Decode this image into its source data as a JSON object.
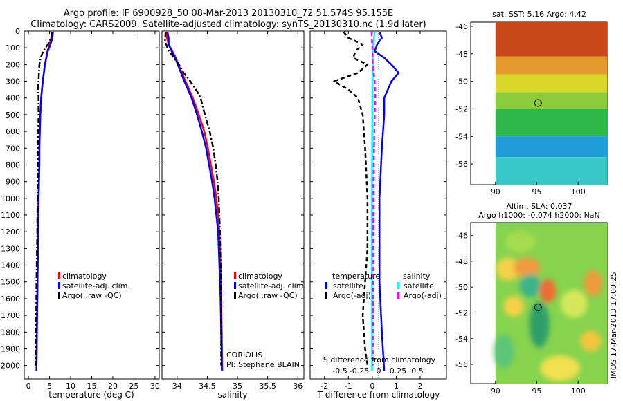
{
  "header": {
    "title_line1": "Argo profile: IF 6900928_50 08-Mar-2013 20130310_72 51.574S 95.155E",
    "title_line2": "Climatology: CARS2009. Satellite-adjusted climatology: synTS_20130310.nc (1.9d later)"
  },
  "colors": {
    "climatology": "#ff0000",
    "satellite": "#0000ff",
    "argo": "#000000",
    "satellite_salinity": "#00ffff",
    "argo_salinity_adj": "#ff00ff"
  },
  "chart_data": [
    {
      "id": "temperature",
      "type": "line",
      "xlabel": "temperature (deg C)",
      "xlim": [
        -1,
        31
      ],
      "ylim": [
        2080,
        0
      ],
      "y_reversed": true,
      "xticks": [
        0,
        5,
        10,
        15,
        20,
        25,
        30
      ],
      "yticks": [
        0,
        100,
        200,
        300,
        400,
        500,
        600,
        700,
        800,
        900,
        1000,
        1100,
        1200,
        1300,
        1400,
        1500,
        1600,
        1700,
        1800,
        1900,
        2000
      ],
      "legend": [
        "climatology",
        "satellite-adj. clim.",
        "Argo(..raw -QC)"
      ],
      "legend_position": "lower-middle",
      "series": [
        {
          "name": "climatology",
          "style": "solid",
          "color": "#ff0000",
          "points": [
            [
              5.5,
              5
            ],
            [
              5.4,
              40
            ],
            [
              5.0,
              80
            ],
            [
              4.5,
              120
            ],
            [
              3.9,
              200
            ],
            [
              3.4,
              300
            ],
            [
              3.0,
              400
            ],
            [
              2.8,
              500
            ],
            [
              2.7,
              600
            ],
            [
              2.6,
              700
            ],
            [
              2.6,
              800
            ],
            [
              2.5,
              900
            ],
            [
              2.4,
              1000
            ],
            [
              2.3,
              1200
            ],
            [
              2.2,
              1400
            ],
            [
              2.1,
              1600
            ],
            [
              2.0,
              1800
            ],
            [
              1.9,
              2030
            ]
          ]
        },
        {
          "name": "satellite-adj. clim.",
          "style": "solid",
          "color": "#0000ff",
          "points": [
            [
              5.8,
              5
            ],
            [
              5.7,
              40
            ],
            [
              5.2,
              80
            ],
            [
              4.6,
              120
            ],
            [
              3.9,
              200
            ],
            [
              3.4,
              300
            ],
            [
              3.0,
              400
            ],
            [
              2.8,
              500
            ],
            [
              2.7,
              600
            ],
            [
              2.6,
              700
            ],
            [
              2.6,
              800
            ],
            [
              2.5,
              900
            ],
            [
              2.4,
              1000
            ],
            [
              2.3,
              1200
            ],
            [
              2.2,
              1400
            ],
            [
              2.1,
              1600
            ],
            [
              2.0,
              1800
            ],
            [
              1.9,
              2030
            ]
          ]
        },
        {
          "name": "Argo(..raw -QC)",
          "style": "dashdot",
          "color": "#000000",
          "points": [
            [
              5.6,
              5
            ],
            [
              5.4,
              40
            ],
            [
              4.6,
              80
            ],
            [
              3.5,
              120
            ],
            [
              2.9,
              160
            ],
            [
              2.6,
              200
            ],
            [
              2.4,
              300
            ],
            [
              2.3,
              330
            ],
            [
              2.4,
              400
            ],
            [
              2.4,
              500
            ],
            [
              2.3,
              700
            ],
            [
              2.2,
              900
            ],
            [
              2.1,
              1200
            ],
            [
              1.9,
              1500
            ],
            [
              1.8,
              1800
            ],
            [
              1.7,
              2000
            ]
          ]
        }
      ]
    },
    {
      "id": "salinity",
      "type": "line",
      "xlabel": "salinity",
      "xlim": [
        33.75,
        36.1
      ],
      "ylim": [
        2080,
        0
      ],
      "y_reversed": true,
      "xticks": [
        34,
        34.5,
        35,
        35.5,
        36
      ],
      "legend": [
        "climatology",
        "satellite-adj. clim.",
        "Argo(..raw -QC)"
      ],
      "legend_position": "lower-right",
      "annotation_lines": [
        "CORIOLIS",
        "PI: Stephane BLAIN"
      ],
      "series": [
        {
          "name": "climatology",
          "style": "solid",
          "color": "#ff0000",
          "points": [
            [
              33.82,
              5
            ],
            [
              33.83,
              40
            ],
            [
              33.86,
              80
            ],
            [
              33.92,
              120
            ],
            [
              33.98,
              160
            ],
            [
              34.02,
              200
            ],
            [
              34.14,
              300
            ],
            [
              34.26,
              400
            ],
            [
              34.36,
              500
            ],
            [
              34.45,
              600
            ],
            [
              34.51,
              700
            ],
            [
              34.56,
              800
            ],
            [
              34.61,
              900
            ],
            [
              34.65,
              1000
            ],
            [
              34.68,
              1100
            ],
            [
              34.7,
              1200
            ],
            [
              34.72,
              1400
            ],
            [
              34.73,
              1600
            ],
            [
              34.74,
              1800
            ],
            [
              34.75,
              2030
            ]
          ]
        },
        {
          "name": "satellite-adj. clim.",
          "style": "solid",
          "color": "#0000ff",
          "points": [
            [
              33.84,
              5
            ],
            [
              33.86,
              40
            ],
            [
              33.86,
              80
            ],
            [
              33.91,
              120
            ],
            [
              33.97,
              160
            ],
            [
              34.01,
              200
            ],
            [
              34.12,
              300
            ],
            [
              34.24,
              400
            ],
            [
              34.33,
              500
            ],
            [
              34.41,
              600
            ],
            [
              34.48,
              700
            ],
            [
              34.53,
              800
            ],
            [
              34.58,
              900
            ],
            [
              34.62,
              1000
            ],
            [
              34.65,
              1100
            ],
            [
              34.68,
              1200
            ],
            [
              34.7,
              1400
            ],
            [
              34.72,
              1600
            ],
            [
              34.73,
              1800
            ],
            [
              34.74,
              2030
            ]
          ]
        },
        {
          "name": "Argo(..raw -QC)",
          "style": "dashdot",
          "color": "#000000",
          "points": [
            [
              33.81,
              5
            ],
            [
              33.8,
              60
            ],
            [
              33.85,
              110
            ],
            [
              33.95,
              160
            ],
            [
              34.03,
              200
            ],
            [
              34.11,
              250
            ],
            [
              34.22,
              300
            ],
            [
              34.33,
              360
            ],
            [
              34.39,
              400
            ],
            [
              34.46,
              500
            ],
            [
              34.54,
              600
            ],
            [
              34.6,
              700
            ],
            [
              34.64,
              800
            ],
            [
              34.67,
              900
            ],
            [
              34.69,
              1000
            ],
            [
              34.71,
              1200
            ],
            [
              34.72,
              1400
            ],
            [
              34.73,
              1600
            ],
            [
              34.73,
              1800
            ],
            [
              34.73,
              2000
            ]
          ]
        }
      ]
    },
    {
      "id": "difference",
      "type": "line",
      "xlabel": "T difference from climatology",
      "secondary_xlabel": "S difference from climatology",
      "xlim": [
        -2.6,
        3.1
      ],
      "ylim": [
        2080,
        0
      ],
      "y_reversed": true,
      "xticks": [
        -2,
        -1,
        0,
        1,
        2
      ],
      "secondary_xticks": [
        -0.5,
        -0.25,
        0,
        0.25,
        0.5
      ],
      "secondary_xtick_labels": [
        "-0.5",
        "-0.25",
        "0",
        "0.25",
        "0.5"
      ],
      "legend_groups": [
        {
          "title": "temperature",
          "items": [
            "satellite",
            "Argo(-adj)"
          ]
        },
        {
          "title": "salinity",
          "items": [
            "satellite",
            "Argo(-adj)"
          ]
        }
      ],
      "series": [
        {
          "name": "temperature satellite",
          "style": "solid",
          "color": "#0000ff",
          "points": [
            [
              0.3,
              5
            ],
            [
              0.4,
              40
            ],
            [
              0.2,
              80
            ],
            [
              0.1,
              120
            ],
            [
              0.5,
              160
            ],
            [
              0.8,
              200
            ],
            [
              1.1,
              250
            ],
            [
              0.8,
              300
            ],
            [
              0.5,
              400
            ],
            [
              0.5,
              500
            ],
            [
              0.4,
              700
            ],
            [
              0.3,
              1000
            ],
            [
              0.3,
              1500
            ],
            [
              0.4,
              1800
            ],
            [
              0.5,
              2030
            ]
          ]
        },
        {
          "name": "temperature Argo(-adj)",
          "style": "dashed",
          "color": "#000000",
          "points": [
            [
              -1.2,
              5
            ],
            [
              -1.0,
              40
            ],
            [
              -0.4,
              80
            ],
            [
              -0.7,
              120
            ],
            [
              -0.8,
              160
            ],
            [
              -0.2,
              200
            ],
            [
              -0.6,
              250
            ],
            [
              -1.6,
              300
            ],
            [
              -1.0,
              350
            ],
            [
              -0.6,
              400
            ],
            [
              -0.4,
              500
            ],
            [
              -0.3,
              700
            ],
            [
              -0.2,
              1000
            ],
            [
              -0.2,
              1300
            ],
            [
              -0.3,
              1500
            ],
            [
              -0.4,
              1700
            ],
            [
              -0.3,
              1900
            ],
            [
              -0.2,
              2000
            ]
          ]
        },
        {
          "name": "salinity satellite",
          "style": "solid",
          "color": "#00ffff",
          "points": [
            [
              0.1,
              5
            ],
            [
              0.07,
              40
            ],
            [
              0.04,
              80
            ],
            [
              0.02,
              120
            ],
            [
              0.015,
              160
            ],
            [
              0.01,
              200
            ],
            [
              0.0,
              400
            ],
            [
              -0.01,
              800
            ],
            [
              -0.02,
              1200
            ],
            [
              -0.015,
              1600
            ],
            [
              -0.01,
              2030
            ]
          ]
        },
        {
          "name": "salinity Argo(-adj)",
          "style": "dashed",
          "color": "#ff00ff",
          "points": [
            [
              -0.03,
              5
            ],
            [
              -0.02,
              40
            ],
            [
              0.0,
              100
            ],
            [
              0.02,
              200
            ],
            [
              0.1,
              300
            ],
            [
              0.12,
              400
            ],
            [
              0.1,
              500
            ],
            [
              0.07,
              700
            ],
            [
              0.05,
              900
            ],
            [
              0.04,
              1200
            ],
            [
              0.03,
              1500
            ],
            [
              0.03,
              1800
            ],
            [
              0.02,
              2000
            ]
          ]
        }
      ]
    },
    {
      "id": "sst_map",
      "type": "heatmap",
      "title": "sat. SST: 5.16 Argo: 4.42",
      "xlim": [
        87.0,
        103.5
      ],
      "ylim": [
        -57.5,
        -45.7
      ],
      "xticks": [
        90,
        95,
        100
      ],
      "yticks": [
        -46,
        -48,
        -50,
        -52,
        -54,
        -56
      ],
      "data_region": {
        "xlim": [
          90,
          103.5
        ]
      },
      "marker": {
        "lon": 95.155,
        "lat": -51.574
      },
      "color_bands": [
        {
          "lat_range": [
            -48.2,
            -45.7
          ],
          "color": "#c84818"
        },
        {
          "lat_range": [
            -49.5,
            -48.2
          ],
          "color": "#e49a2a"
        },
        {
          "lat_range": [
            -50.8,
            -49.5
          ],
          "color": "#d8d628"
        },
        {
          "lat_range": [
            -52.0,
            -50.8
          ],
          "color": "#8ccc3a"
        },
        {
          "lat_range": [
            -54.0,
            -52.0
          ],
          "color": "#2eb848"
        },
        {
          "lat_range": [
            -55.5,
            -54.0
          ],
          "color": "#1f9ed8"
        },
        {
          "lat_range": [
            -57.5,
            -55.5
          ],
          "color": "#3ac8c8"
        }
      ]
    },
    {
      "id": "sla_map",
      "type": "heatmap",
      "title_line1": "Altim. SLA: 0.037",
      "title_line2": "Argo h1000: -0.074 h2000: NaN",
      "xlim": [
        87.0,
        103.5
      ],
      "ylim": [
        -57.5,
        -45.0
      ],
      "xticks": [
        90,
        95,
        100
      ],
      "yticks": [
        -46,
        -48,
        -50,
        -52,
        -54,
        -56
      ],
      "data_region": {
        "xlim": [
          90,
          103.5
        ]
      },
      "marker": {
        "lon": 95.155,
        "lat": -51.574
      },
      "background_color": "#86d34e",
      "blobs": [
        {
          "lon": 91.5,
          "lat": -48.6,
          "rx": 1.4,
          "ry": 0.9,
          "color": "#f7d24a"
        },
        {
          "lon": 93.8,
          "lat": -48.5,
          "rx": 1.6,
          "ry": 0.8,
          "color": "#f29a42"
        },
        {
          "lon": 94.2,
          "lat": -49.9,
          "rx": 1.3,
          "ry": 0.9,
          "color": "#3bb48a"
        },
        {
          "lon": 96.3,
          "lat": -50.3,
          "rx": 1.0,
          "ry": 0.9,
          "color": "#f06a35"
        },
        {
          "lon": 95.3,
          "lat": -52.9,
          "rx": 1.2,
          "ry": 1.8,
          "color": "#2e9e6a"
        },
        {
          "lon": 92.2,
          "lat": -51.5,
          "rx": 1.2,
          "ry": 0.8,
          "color": "#f7d24a"
        },
        {
          "lon": 101.8,
          "lat": -49.7,
          "rx": 1.1,
          "ry": 1.0,
          "color": "#ee9a3a"
        },
        {
          "lon": 99.5,
          "lat": -51.3,
          "rx": 1.6,
          "ry": 1.1,
          "color": "#d6e85a"
        },
        {
          "lon": 101.5,
          "lat": -54.2,
          "rx": 1.3,
          "ry": 0.8,
          "color": "#f2c63e"
        },
        {
          "lon": 97.8,
          "lat": -56.3,
          "rx": 2.4,
          "ry": 1.0,
          "color": "#f2e050"
        },
        {
          "lon": 91.0,
          "lat": -55.0,
          "rx": 1.2,
          "ry": 1.3,
          "color": "#5cc57a"
        },
        {
          "lon": 93.0,
          "lat": -46.5,
          "rx": 1.8,
          "ry": 0.8,
          "color": "#a8dc50"
        }
      ]
    }
  ],
  "side_label": "IMOS 17-Mar-2013 17:00:25"
}
